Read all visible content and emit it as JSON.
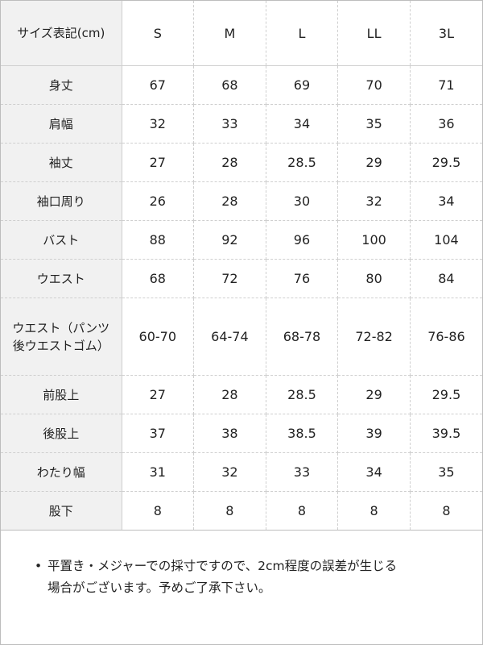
{
  "table": {
    "header": {
      "label": "サイズ表記(cm)",
      "sizes": [
        "S",
        "M",
        "L",
        "LL",
        "3L"
      ]
    },
    "rows": [
      {
        "label": "身丈",
        "values": [
          "67",
          "68",
          "69",
          "70",
          "71"
        ]
      },
      {
        "label": "肩幅",
        "values": [
          "32",
          "33",
          "34",
          "35",
          "36"
        ]
      },
      {
        "label": "袖丈",
        "values": [
          "27",
          "28",
          "28.5",
          "29",
          "29.5"
        ]
      },
      {
        "label": "袖口周り",
        "values": [
          "26",
          "28",
          "30",
          "32",
          "34"
        ]
      },
      {
        "label": "バスト",
        "values": [
          "88",
          "92",
          "96",
          "100",
          "104"
        ]
      },
      {
        "label": "ウエスト",
        "values": [
          "68",
          "72",
          "76",
          "80",
          "84"
        ]
      },
      {
        "label_line1": "ウエスト（パンツ",
        "label_line2": "後ウエストゴム）",
        "values": [
          "60-70",
          "64-74",
          "68-78",
          "72-82",
          "76-86"
        ]
      },
      {
        "label": "前股上",
        "values": [
          "27",
          "28",
          "28.5",
          "29",
          "29.5"
        ]
      },
      {
        "label": "後股上",
        "values": [
          "37",
          "38",
          "38.5",
          "39",
          "39.5"
        ]
      },
      {
        "label": "わたり幅",
        "values": [
          "31",
          "32",
          "33",
          "34",
          "35"
        ]
      },
      {
        "label": "股下",
        "values": [
          "8",
          "8",
          "8",
          "8",
          "8"
        ]
      }
    ]
  },
  "notes": {
    "bullet": "•",
    "text_line1": "平置き・メジャーでの採寸ですので、2cm程度の誤差が生じる",
    "text_line2": "場合がございます。予めご了承下さい。"
  }
}
